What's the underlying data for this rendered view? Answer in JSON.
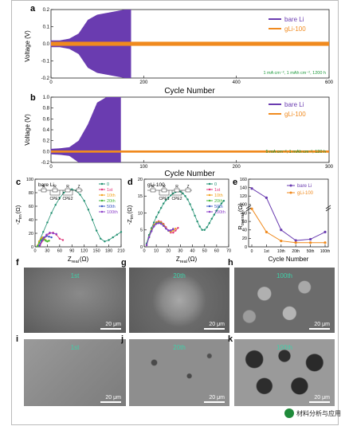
{
  "frame_color": "#bbbbbb",
  "colors": {
    "bare": "#6a3cb0",
    "gli": "#f08a1e",
    "green": "#1e9a3c"
  },
  "panel_a": {
    "letter": "a",
    "ylabel": "Voltage (V)",
    "xlabel": "Cycle Number",
    "yticks": [
      "0.2",
      "0.1",
      "0.0",
      "-0.1",
      "-0.2"
    ],
    "xticks": [
      "0",
      "200",
      "400",
      "600"
    ],
    "legend": [
      "bare Li",
      "gLi-100"
    ],
    "note": "1 mA cm⁻², 1 mAh cm⁻², 1200 h"
  },
  "panel_b": {
    "letter": "b",
    "ylabel": "Voltage (V)",
    "xlabel": "Cycle Number",
    "yticks": [
      "1.0",
      "0.8",
      "0.6",
      "0.4",
      "0.2",
      "0.0",
      "-0.2"
    ],
    "xticks": [
      "0",
      "100",
      "200",
      "300"
    ],
    "legend": [
      "bare Li",
      "gLi-100"
    ],
    "note": "5 mA cm⁻², 1 mAh cm⁻², 120 h"
  },
  "panel_c": {
    "letter": "c",
    "title": "bare Li",
    "ylabel": "-Z",
    "ylabel_sub": "im",
    "ylabel_unit": "(Ω)",
    "xlabel": "Z",
    "xlabel_sub": "real",
    "xlabel_unit": "(Ω)",
    "yticks": [
      "100",
      "80",
      "60",
      "40",
      "20",
      "0"
    ],
    "xticks": [
      "0",
      "30",
      "60",
      "90",
      "120",
      "150",
      "180",
      "210"
    ],
    "circuit": [
      "R",
      "R",
      "R",
      "Z",
      "CPE1",
      "CPE2"
    ],
    "legend": [
      "0",
      "1st",
      "10th",
      "20th",
      "50th",
      "100th"
    ]
  },
  "panel_d": {
    "letter": "d",
    "title": "gLi-100",
    "ylabel": "-Z",
    "ylabel_sub": "im",
    "ylabel_unit": "(Ω)",
    "xlabel": "Z",
    "xlabel_sub": "real",
    "xlabel_unit": "(Ω)",
    "yticks": [
      "20",
      "15",
      "10",
      "5",
      "0"
    ],
    "xticks": [
      "0",
      "10",
      "20",
      "30",
      "40",
      "50",
      "60",
      "70"
    ],
    "circuit": [
      "R",
      "R",
      "R",
      "Z",
      "CPE1",
      "CPE2"
    ],
    "legend": [
      "0",
      "1st",
      "10th",
      "20th",
      "50th",
      "100th"
    ]
  },
  "panel_e": {
    "letter": "e",
    "ylabel": "R",
    "ylabel_sub": "overall",
    "ylabel_unit": "(Ω)",
    "xlabel": "Cycle Number",
    "yticks": [
      "160",
      "140",
      "120",
      "100",
      "80",
      "60",
      "40",
      "20",
      "0"
    ],
    "xticks": [
      "0",
      "1st",
      "10th",
      "20th",
      "50th",
      "100th"
    ],
    "legend": [
      "bare Li",
      "gLi-100"
    ]
  },
  "series_colors": [
    "#1f8f70",
    "#e0357a",
    "#f3a21d",
    "#45b83c",
    "#3a58c4",
    "#8a3cc8"
  ],
  "chart_data": [
    {
      "type": "line",
      "panel": "a",
      "xlabel": "Cycle Number",
      "ylabel": "Voltage (V)",
      "xlim": [
        0,
        600
      ],
      "ylim": [
        -0.2,
        0.2
      ],
      "series": [
        {
          "name": "bare Li",
          "x": [
            0,
            20,
            40,
            60,
            80,
            100,
            120,
            140,
            160,
            172
          ],
          "amplitude": [
            0.02,
            0.02,
            0.03,
            0.06,
            0.14,
            0.17,
            0.18,
            0.19,
            0.2,
            0.2
          ]
        },
        {
          "name": "gLi-100",
          "x": [
            0,
            600
          ],
          "amplitude": [
            0.012,
            0.012
          ]
        }
      ]
    },
    {
      "type": "line",
      "panel": "b",
      "xlabel": "Cycle Number",
      "ylabel": "Voltage (V)",
      "xlim": [
        0,
        300
      ],
      "ylim": [
        -0.2,
        1.0
      ],
      "series": [
        {
          "name": "bare Li",
          "x": [
            0,
            10,
            20,
            30,
            40,
            50,
            60,
            70,
            75
          ],
          "amplitude": [
            0.05,
            0.06,
            0.08,
            0.2,
            0.5,
            0.9,
            1.0,
            1.0,
            1.0
          ]
        },
        {
          "name": "gLi-100",
          "x": [
            0,
            300
          ],
          "amplitude": [
            0.02,
            0.02
          ]
        }
      ]
    },
    {
      "type": "scatter",
      "panel": "c",
      "xlabel": "Zreal (Ω)",
      "ylabel": "-Zim (Ω)",
      "xlim": [
        0,
        210
      ],
      "ylim": [
        0,
        100
      ],
      "series": [
        {
          "name": "0",
          "x": [
            10,
            20,
            30,
            40,
            50,
            60,
            70,
            80,
            90,
            100,
            110,
            120,
            130,
            140,
            150,
            160,
            170,
            180,
            190,
            200,
            210
          ],
          "y": [
            8,
            22,
            36,
            50,
            62,
            72,
            80,
            84,
            85,
            83,
            77,
            68,
            55,
            40,
            24,
            12,
            8,
            10,
            14,
            18,
            22
          ]
        },
        {
          "name": "1st",
          "x": [
            12,
            20,
            28,
            36,
            44,
            52,
            60,
            68
          ],
          "y": [
            2,
            10,
            16,
            20,
            21,
            18,
            12,
            10
          ]
        },
        {
          "name": "10th",
          "x": [
            6,
            10,
            14,
            18,
            22,
            26,
            30,
            34
          ],
          "y": [
            2,
            8,
            12,
            14,
            13,
            10,
            8,
            9
          ]
        },
        {
          "name": "20th",
          "x": [
            6,
            10,
            14,
            18,
            22,
            26,
            30,
            34
          ],
          "y": [
            1,
            6,
            10,
            12,
            11,
            9,
            8,
            9
          ]
        },
        {
          "name": "50th",
          "x": [
            10,
            16,
            22,
            28,
            34,
            40
          ],
          "y": [
            2,
            9,
            14,
            16,
            15,
            14
          ]
        },
        {
          "name": "100th",
          "x": [
            12,
            20,
            28,
            36,
            44,
            52
          ],
          "y": [
            3,
            12,
            18,
            21,
            20,
            19
          ]
        }
      ]
    },
    {
      "type": "scatter",
      "panel": "d",
      "xlabel": "Zreal (Ω)",
      "ylabel": "-Zim (Ω)",
      "xlim": [
        0,
        70
      ],
      "ylim": [
        0,
        20
      ],
      "series": [
        {
          "name": "0",
          "x": [
            2,
            4,
            6,
            8,
            10,
            12,
            14,
            16,
            18,
            20,
            22,
            24,
            26,
            28,
            30,
            32,
            34,
            36,
            38,
            40,
            42,
            44,
            46,
            48,
            50,
            52,
            54,
            56,
            58,
            60,
            62,
            64,
            66
          ],
          "y": [
            1,
            3.5,
            5.5,
            7.2,
            8.8,
            10.2,
            11.5,
            12.8,
            13.8,
            14.5,
            15.2,
            15.8,
            16.2,
            16.4,
            16.3,
            15.8,
            15,
            14,
            12.6,
            11,
            9.2,
            7.5,
            6,
            5,
            5,
            5.8,
            7,
            8.3,
            9.5,
            10.7,
            11.8,
            12.8,
            13.6
          ]
        },
        {
          "name": "1st",
          "x": [
            2,
            4,
            6,
            8,
            10,
            12,
            14,
            16,
            18,
            20,
            22,
            24,
            26,
            28
          ],
          "y": [
            0.5,
            3,
            5,
            6.5,
            7.3,
            7.6,
            7.4,
            6.8,
            5.8,
            4.8,
            4.2,
            4.2,
            4.8,
            5.6
          ]
        },
        {
          "name": "10th",
          "x": [
            2,
            4,
            6,
            8,
            10,
            12,
            14,
            16,
            18,
            20,
            22,
            24,
            26
          ],
          "y": [
            0.5,
            3,
            5,
            6.4,
            7.2,
            7.4,
            7.2,
            6.6,
            5.6,
            4.8,
            4.5,
            4.8,
            5.4
          ]
        },
        {
          "name": "20th",
          "x": [
            2,
            4,
            6,
            8,
            10,
            12,
            14,
            16,
            18,
            20,
            22,
            24
          ],
          "y": [
            0.5,
            3,
            4.8,
            6.2,
            7,
            7.2,
            7,
            6.3,
            5.4,
            4.8,
            4.8,
            5.3
          ]
        },
        {
          "name": "50th",
          "x": [
            2,
            4,
            6,
            8,
            10,
            12,
            14,
            16,
            18,
            20,
            22,
            24
          ],
          "y": [
            0.5,
            2.8,
            4.6,
            6,
            6.8,
            7,
            6.8,
            6.2,
            5.4,
            4.8,
            4.8,
            5.2
          ]
        },
        {
          "name": "100th",
          "x": [
            2,
            4,
            6,
            8,
            10,
            12,
            14,
            16,
            18,
            20,
            22,
            24
          ],
          "y": [
            0.5,
            2.8,
            4.6,
            6,
            6.8,
            7,
            6.8,
            6.2,
            5.4,
            4.9,
            4.9,
            5.3
          ]
        }
      ]
    },
    {
      "type": "line",
      "panel": "e",
      "xlabel": "Cycle Number",
      "ylabel": "Roverall (Ω)",
      "categories": [
        "0",
        "1st",
        "10th",
        "20th",
        "50th",
        "100th"
      ],
      "ylim": [
        0,
        160
      ],
      "series": [
        {
          "name": "bare Li",
          "values": [
            138,
            116,
            40,
            15,
            18,
            35
          ]
        },
        {
          "name": "gLi-100",
          "values": [
            90,
            35,
            14,
            10,
            10,
            10
          ]
        }
      ]
    }
  ],
  "sem": {
    "f": {
      "letter": "f",
      "label": "1st",
      "scale": "20 μm"
    },
    "g": {
      "letter": "g",
      "label": "20th",
      "scale": "20 μm"
    },
    "h": {
      "letter": "h",
      "label": "100th",
      "scale": "20 μm"
    },
    "i": {
      "letter": "i",
      "label": "1st",
      "scale": "20 μm"
    },
    "j": {
      "letter": "j",
      "label": "20th",
      "scale": "20 μm"
    },
    "k": {
      "letter": "k",
      "label": "100th",
      "scale": "20 μm"
    }
  },
  "watermark": "材料分析与应用"
}
